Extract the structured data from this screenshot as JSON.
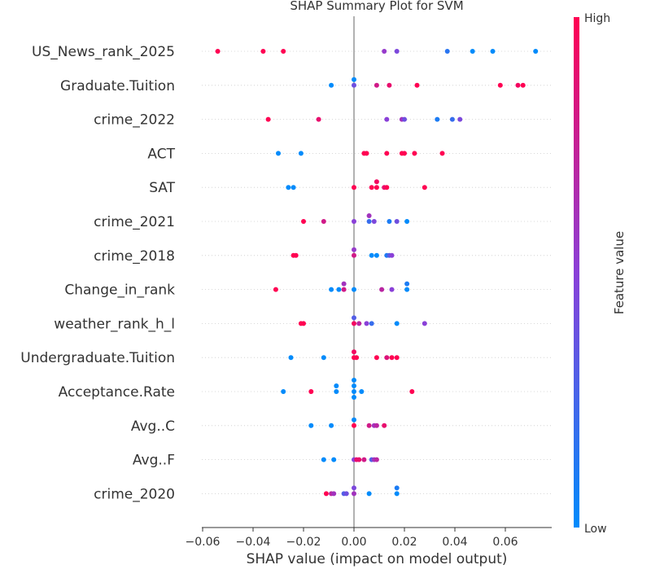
{
  "chart_data": {
    "type": "scatter",
    "title": "SHAP Summary Plot for SVM",
    "xlabel": "SHAP value (impact on model output)",
    "xlim": [
      -0.06,
      0.078
    ],
    "xticks": [
      -0.06,
      -0.04,
      -0.02,
      0.0,
      0.02,
      0.04,
      0.06
    ],
    "xtick_labels": [
      "−0.06",
      "−0.04",
      "−0.02",
      "0.00",
      "0.02",
      "0.04",
      "0.06"
    ],
    "grid": false,
    "colorbar": {
      "label": "Feature value",
      "high_label": "High",
      "low_label": "Low",
      "low_color": "#008bfb",
      "mid_color": "#8a40d8",
      "high_color": "#ff0052"
    },
    "features": [
      {
        "name": "US_News_rank_2025",
        "points": [
          [
            -0.054,
            1.0
          ],
          [
            -0.036,
            1.0
          ],
          [
            -0.028,
            1.0
          ],
          [
            0.012,
            0.55
          ],
          [
            0.017,
            0.45
          ],
          [
            0.037,
            0.15
          ],
          [
            0.047,
            0.0
          ],
          [
            0.055,
            0.0
          ],
          [
            0.072,
            0.0
          ]
        ]
      },
      {
        "name": "Graduate.Tuition",
        "points": [
          [
            -0.009,
            0.0
          ],
          [
            0.0,
            0.4
          ],
          [
            0.0,
            0.0
          ],
          [
            0.009,
            0.8
          ],
          [
            0.014,
            0.9
          ],
          [
            0.025,
            1.0
          ],
          [
            0.058,
            1.0
          ],
          [
            0.065,
            0.95
          ],
          [
            0.067,
            1.0
          ]
        ]
      },
      {
        "name": "crime_2022",
        "points": [
          [
            -0.034,
            1.0
          ],
          [
            -0.014,
            0.9
          ],
          [
            0.013,
            0.5
          ],
          [
            0.019,
            0.6
          ],
          [
            0.02,
            0.4
          ],
          [
            0.033,
            0.1
          ],
          [
            0.039,
            0.2
          ],
          [
            0.042,
            0.45
          ]
        ]
      },
      {
        "name": "ACT",
        "points": [
          [
            -0.03,
            0.0
          ],
          [
            -0.021,
            0.0
          ],
          [
            0.004,
            1.0
          ],
          [
            0.005,
            1.0
          ],
          [
            0.013,
            1.0
          ],
          [
            0.019,
            1.0
          ],
          [
            0.02,
            1.0
          ],
          [
            0.024,
            1.0
          ],
          [
            0.035,
            1.0
          ]
        ]
      },
      {
        "name": "SAT",
        "points": [
          [
            -0.026,
            0.0
          ],
          [
            -0.024,
            0.0
          ],
          [
            0.0,
            1.0
          ],
          [
            0.007,
            1.0
          ],
          [
            0.009,
            1.0
          ],
          [
            0.009,
            0.95
          ],
          [
            0.012,
            0.9
          ],
          [
            0.013,
            1.0
          ],
          [
            0.028,
            1.0
          ]
        ]
      },
      {
        "name": "crime_2021",
        "points": [
          [
            -0.02,
            1.0
          ],
          [
            -0.012,
            0.8
          ],
          [
            0.0,
            0.5
          ],
          [
            0.006,
            0.2
          ],
          [
            0.006,
            0.6
          ],
          [
            0.008,
            0.45
          ],
          [
            0.014,
            0.1
          ],
          [
            0.017,
            0.4
          ],
          [
            0.021,
            0.0
          ]
        ]
      },
      {
        "name": "crime_2018",
        "points": [
          [
            -0.024,
            1.0
          ],
          [
            -0.023,
            1.0
          ],
          [
            0.0,
            0.8
          ],
          [
            0.0,
            0.55
          ],
          [
            0.007,
            0.0
          ],
          [
            0.009,
            0.0
          ],
          [
            0.013,
            0.1
          ],
          [
            0.014,
            0.3
          ],
          [
            0.015,
            0.5
          ]
        ]
      },
      {
        "name": "Change_in_rank",
        "points": [
          [
            -0.031,
            1.0
          ],
          [
            -0.009,
            0.0
          ],
          [
            -0.006,
            0.0
          ],
          [
            -0.004,
            0.8
          ],
          [
            -0.004,
            0.6
          ],
          [
            0.0,
            0.0
          ],
          [
            0.011,
            0.7
          ],
          [
            0.015,
            0.5
          ],
          [
            0.021,
            0.0
          ],
          [
            0.021,
            0.1
          ]
        ]
      },
      {
        "name": "weather_rank_h_l",
        "points": [
          [
            -0.021,
            1.0
          ],
          [
            -0.02,
            1.0
          ],
          [
            0.0,
            0.95
          ],
          [
            0.0,
            0.3
          ],
          [
            0.002,
            0.7
          ],
          [
            0.005,
            0.5
          ],
          [
            0.007,
            0.2
          ],
          [
            0.017,
            0.0
          ],
          [
            0.028,
            0.5
          ]
        ]
      },
      {
        "name": "Undergraduate.Tuition",
        "points": [
          [
            -0.025,
            0.0
          ],
          [
            -0.012,
            0.0
          ],
          [
            0.0,
            1.0
          ],
          [
            0.0,
            0.95
          ],
          [
            0.001,
            1.0
          ],
          [
            0.009,
            1.0
          ],
          [
            0.013,
            0.85
          ],
          [
            0.015,
            1.0
          ],
          [
            0.017,
            1.0
          ]
        ]
      },
      {
        "name": "Acceptance.Rate",
        "points": [
          [
            -0.028,
            0.0
          ],
          [
            -0.017,
            1.0
          ],
          [
            -0.007,
            0.0
          ],
          [
            -0.007,
            0.0
          ],
          [
            0.0,
            0.0
          ],
          [
            0.0,
            0.0
          ],
          [
            0.0,
            0.0
          ],
          [
            0.0,
            0.0
          ],
          [
            0.003,
            0.0
          ],
          [
            0.023,
            1.0
          ]
        ]
      },
      {
        "name": "Avg..C",
        "points": [
          [
            -0.017,
            0.0
          ],
          [
            -0.009,
            0.0
          ],
          [
            0.0,
            1.0
          ],
          [
            0.0,
            0.0
          ],
          [
            0.006,
            0.8
          ],
          [
            0.008,
            0.6
          ],
          [
            0.009,
            0.7
          ],
          [
            0.012,
            0.9
          ]
        ]
      },
      {
        "name": "Avg..F",
        "points": [
          [
            -0.012,
            0.0
          ],
          [
            -0.008,
            0.0
          ],
          [
            0.0,
            0.5
          ],
          [
            0.001,
            0.9
          ],
          [
            0.002,
            0.9
          ],
          [
            0.004,
            0.8
          ],
          [
            0.007,
            0.3
          ],
          [
            0.008,
            0.6
          ],
          [
            0.009,
            0.7
          ]
        ]
      },
      {
        "name": "crime_2020",
        "points": [
          [
            -0.011,
            1.0
          ],
          [
            -0.009,
            0.7
          ],
          [
            -0.008,
            0.6
          ],
          [
            -0.004,
            0.3
          ],
          [
            -0.003,
            0.4
          ],
          [
            0.0,
            0.6
          ],
          [
            0.0,
            0.45
          ],
          [
            0.006,
            0.0
          ],
          [
            0.017,
            0.0
          ],
          [
            0.017,
            0.1
          ]
        ]
      }
    ]
  }
}
